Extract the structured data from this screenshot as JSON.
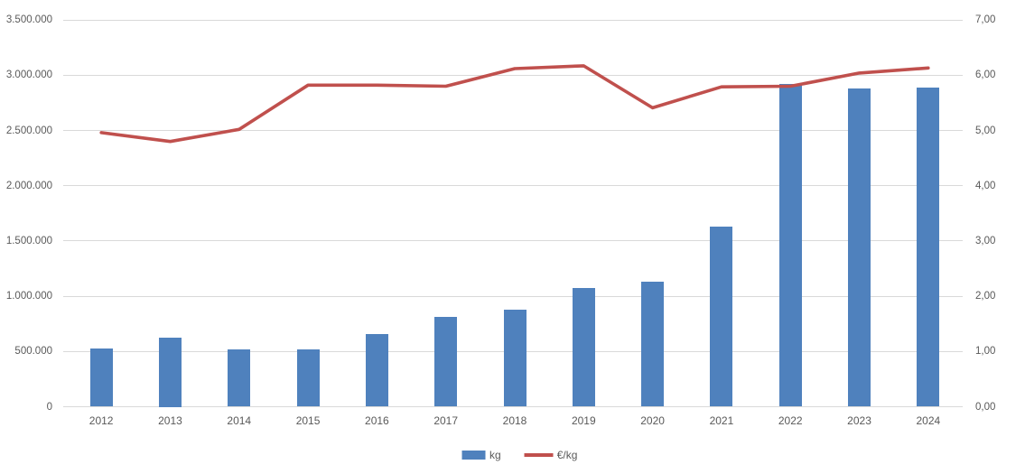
{
  "legend": {
    "kg_label": "kg",
    "eur_per_kg_label": "€/kg"
  },
  "colors": {
    "bar": "#4f81bd",
    "line": "#c0504d",
    "gridline": "#d9d9d9",
    "axis_text": "#595959"
  },
  "chart_data": {
    "type": "bar",
    "subtype": "bar-line-combo",
    "title": "",
    "xlabel": "",
    "ylabel_left": "kg",
    "ylabel_right": "€/kg",
    "grid": true,
    "legend_position": "bottom-center",
    "categories": [
      "2012",
      "2013",
      "2014",
      "2015",
      "2016",
      "2017",
      "2018",
      "2019",
      "2020",
      "2021",
      "2022",
      "2023",
      "2024"
    ],
    "series": [
      {
        "name": "kg",
        "type": "bar",
        "axis": "left",
        "color": "#4f81bd",
        "values": [
          525000,
          625000,
          515000,
          520000,
          655000,
          815000,
          875000,
          1075000,
          1130000,
          1630000,
          2920000,
          2880000,
          2890000
        ]
      },
      {
        "name": "€/kg",
        "type": "line",
        "axis": "right",
        "color": "#c0504d",
        "values": [
          4.96,
          4.8,
          5.02,
          5.82,
          5.82,
          5.8,
          6.12,
          6.17,
          5.41,
          5.79,
          5.8,
          6.04,
          6.13
        ]
      }
    ],
    "left_axis": {
      "min": 0,
      "max": 3500000,
      "step": 500000,
      "tick_labels": [
        "0",
        "500.000",
        "1.000.000",
        "1.500.000",
        "2.000.000",
        "2.500.000",
        "3.000.000",
        "3.500.000"
      ]
    },
    "right_axis": {
      "min": 0,
      "max": 7,
      "step": 1,
      "tick_labels": [
        "0,00",
        "1,00",
        "2,00",
        "3,00",
        "4,00",
        "5,00",
        "6,00",
        "7,00"
      ]
    }
  }
}
